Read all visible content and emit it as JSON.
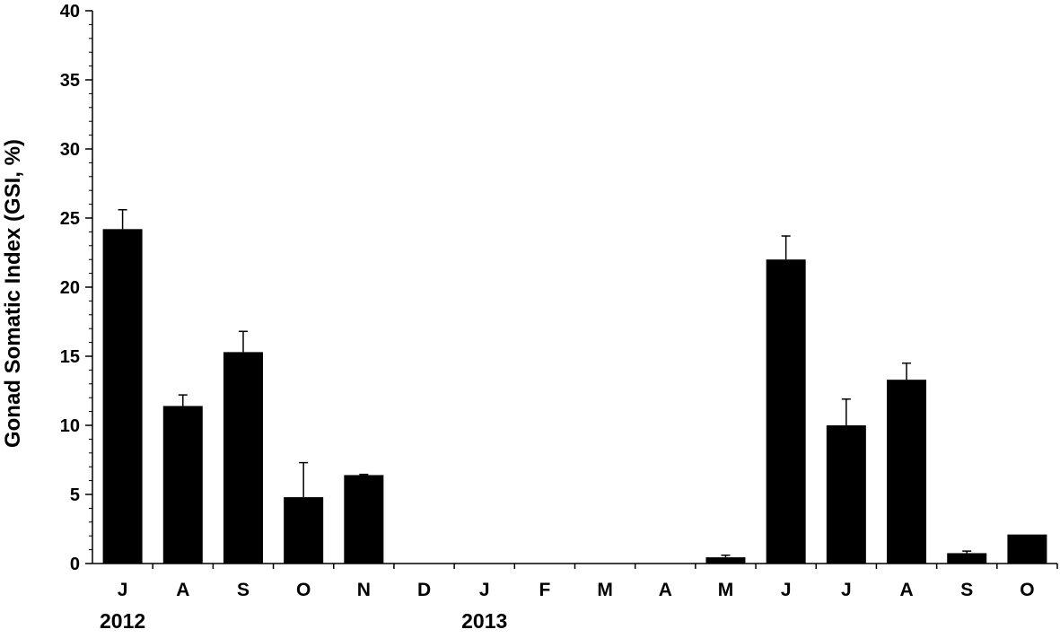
{
  "chart_data": {
    "type": "bar",
    "title": "",
    "xlabel": "",
    "ylabel": "Gonad Somatic Index (GSI, %)",
    "ylim": [
      0,
      40
    ],
    "yticks": [
      0,
      5,
      10,
      15,
      20,
      25,
      30,
      35,
      40
    ],
    "y_minor_step": 1,
    "grid": false,
    "legend": "none",
    "categories": [
      "J",
      "A",
      "S",
      "O",
      "N",
      "D",
      "J",
      "F",
      "M",
      "A",
      "M",
      "J",
      "J",
      "A",
      "S",
      "O"
    ],
    "values": [
      24.2,
      11.4,
      15.3,
      4.8,
      6.4,
      0,
      0,
      0,
      0,
      0,
      0.45,
      22.0,
      10.0,
      13.3,
      0.75,
      2.1
    ],
    "error": [
      1.4,
      0.8,
      1.5,
      2.5,
      0.05,
      0,
      0,
      0,
      0,
      0,
      0.15,
      1.7,
      1.9,
      1.2,
      0.15,
      0
    ],
    "years": [
      {
        "label": "2012",
        "start_index": 0
      },
      {
        "label": "2013",
        "start_index": 6
      }
    ],
    "bar_color": "#000000"
  }
}
